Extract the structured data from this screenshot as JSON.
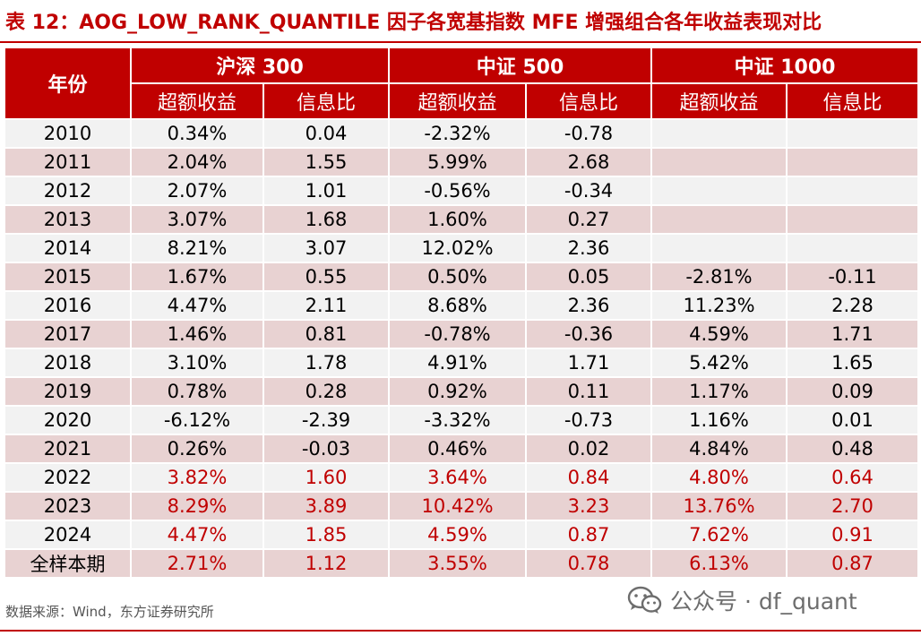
{
  "caption": "表 12：AOG_LOW_RANK_QUANTILE 因子各宽基指数 MFE 增强组合各年收益表现对比",
  "table": {
    "year_header": "年份",
    "groups": [
      "沪深 300",
      "中证 500",
      "中证 1000"
    ],
    "sub_headers": [
      "超额收益",
      "信息比",
      "超额收益",
      "信息比",
      "超额收益",
      "信息比"
    ],
    "rows": [
      {
        "year": "2010",
        "cells": [
          "0.34%",
          "0.04",
          "-2.32%",
          "-0.78",
          "",
          ""
        ]
      },
      {
        "year": "2011",
        "cells": [
          "2.04%",
          "1.55",
          "5.99%",
          "2.68",
          "",
          ""
        ]
      },
      {
        "year": "2012",
        "cells": [
          "2.07%",
          "1.01",
          "-0.56%",
          "-0.34",
          "",
          ""
        ]
      },
      {
        "year": "2013",
        "cells": [
          "3.07%",
          "1.68",
          "1.60%",
          "0.27",
          "",
          ""
        ]
      },
      {
        "year": "2014",
        "cells": [
          "8.21%",
          "3.07",
          "12.02%",
          "2.36",
          "",
          ""
        ]
      },
      {
        "year": "2015",
        "cells": [
          "1.67%",
          "0.55",
          "0.50%",
          "0.05",
          "-2.81%",
          "-0.11"
        ]
      },
      {
        "year": "2016",
        "cells": [
          "4.47%",
          "2.11",
          "8.68%",
          "2.36",
          "11.23%",
          "2.28"
        ]
      },
      {
        "year": "2017",
        "cells": [
          "1.46%",
          "0.81",
          "-0.78%",
          "-0.36",
          "4.59%",
          "1.71"
        ]
      },
      {
        "year": "2018",
        "cells": [
          "3.10%",
          "1.78",
          "4.91%",
          "1.71",
          "5.42%",
          "1.65"
        ]
      },
      {
        "year": "2019",
        "cells": [
          "0.78%",
          "0.28",
          "0.92%",
          "0.11",
          "1.17%",
          "0.09"
        ]
      },
      {
        "year": "2020",
        "cells": [
          "-6.12%",
          "-2.39",
          "-3.32%",
          "-0.73",
          "1.16%",
          "0.01"
        ]
      },
      {
        "year": "2021",
        "cells": [
          "0.26%",
          "-0.03",
          "0.46%",
          "0.02",
          "4.84%",
          "0.48"
        ]
      },
      {
        "year": "2022",
        "cells": [
          "3.82%",
          "1.60",
          "3.64%",
          "0.84",
          "4.80%",
          "0.64"
        ],
        "highlight": true
      },
      {
        "year": "2023",
        "cells": [
          "8.29%",
          "3.89",
          "10.42%",
          "3.23",
          "13.76%",
          "2.70"
        ],
        "highlight": true
      },
      {
        "year": "2024",
        "cells": [
          "4.47%",
          "1.85",
          "4.59%",
          "0.87",
          "7.62%",
          "0.91"
        ],
        "highlight": true
      },
      {
        "year": "全样本期",
        "cells": [
          "2.71%",
          "1.12",
          "3.55%",
          "0.78",
          "6.13%",
          "0.87"
        ],
        "highlight": true
      }
    ]
  },
  "source": "数据来源：Wind，东方证券研究所",
  "watermark": {
    "icon": "wechat-icon",
    "text": "公众号 · df_quant"
  },
  "colors": {
    "accent": "#c00000",
    "row_light": "#f2f2f2",
    "row_dark": "#e8d2d2"
  }
}
